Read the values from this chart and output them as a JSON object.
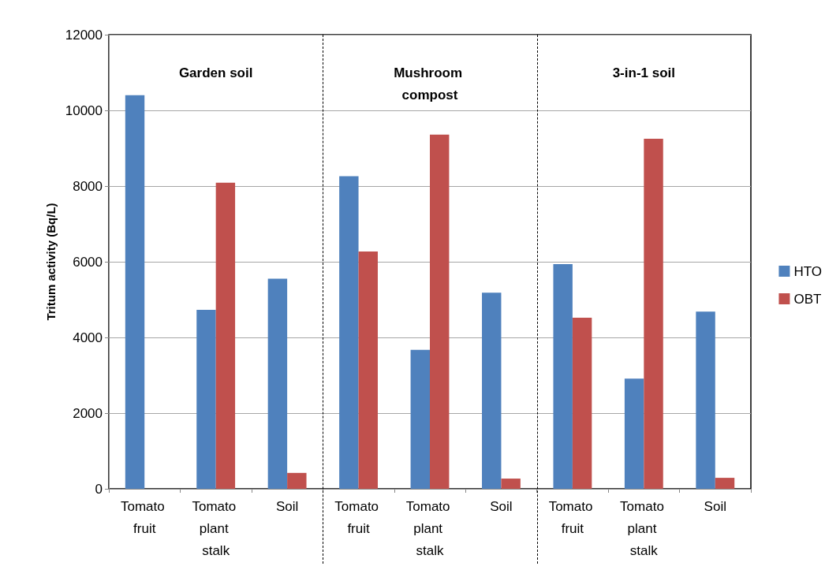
{
  "chart_data": {
    "type": "bar",
    "ylabel": "Tritum activity (Bq/L)",
    "categories": [
      "Tomato fruit",
      "Tomato plant stalk",
      "Soil",
      "Tomato fruit",
      "Tomato plant stalk",
      "Soil",
      "Tomato fruit",
      "Tomato plant stalk",
      "Soil"
    ],
    "series": [
      {
        "name": "HTO",
        "color": "#4f81bd",
        "values": [
          10400,
          4730,
          5550,
          8260,
          3670,
          5180,
          5940,
          2910,
          4680
        ]
      },
      {
        "name": "OBT",
        "color": "#c0504d",
        "values": [
          null,
          8090,
          420,
          6270,
          9360,
          270,
          4520,
          9250,
          290
        ]
      }
    ],
    "ylim": [
      0,
      12000
    ],
    "yticks": [
      0,
      2000,
      4000,
      6000,
      8000,
      10000,
      12000
    ],
    "grid": "y",
    "legend": "right",
    "annotations": [
      "Garden soil",
      "Mushroom compost",
      "3-in-1 soil"
    ]
  }
}
